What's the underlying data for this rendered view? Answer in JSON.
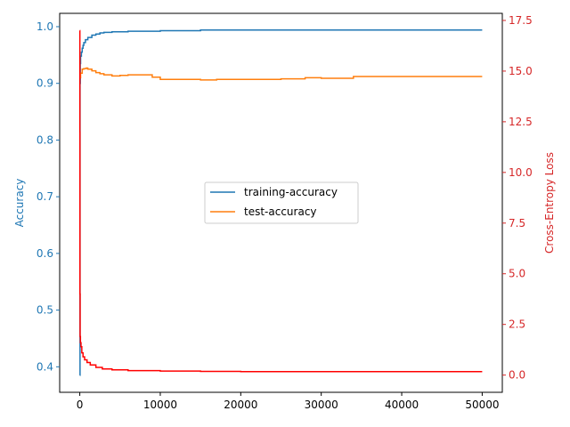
{
  "chart_data": {
    "type": "line",
    "title": "",
    "xlabel": "",
    "x_ticks": [
      "0",
      "10000",
      "20000",
      "30000",
      "40000",
      "50000"
    ],
    "x_range": [
      -2500,
      52500
    ],
    "left_axis": {
      "label": "Accuracy",
      "color": "#1f77b4",
      "range": [
        0.355,
        1.0235
      ],
      "ticks": [
        "0.4",
        "0.5",
        "0.6",
        "0.7",
        "0.8",
        "0.9",
        "1.0"
      ]
    },
    "right_axis": {
      "label": "Cross-Entropy Loss",
      "color": "#d62728",
      "range": [
        -0.85,
        17.85
      ],
      "ticks": [
        "0.0",
        "2.5",
        "5.0",
        "7.5",
        "10.0",
        "12.5",
        "15.0",
        "17.5"
      ]
    },
    "legend": {
      "position": "center",
      "entries": [
        "training-accuracy",
        "test-accuracy"
      ]
    },
    "series": [
      {
        "name": "training-accuracy",
        "axis": "left",
        "color": "#1f77b4",
        "x": [
          0,
          30,
          60,
          100,
          200,
          300,
          400,
          500,
          700,
          1000,
          1500,
          2000,
          2500,
          3000,
          4000,
          5000,
          6000,
          8000,
          10000,
          15000,
          20000,
          30000,
          40000,
          50000
        ],
        "y": [
          0.385,
          0.9,
          0.935,
          0.948,
          0.955,
          0.962,
          0.967,
          0.972,
          0.977,
          0.981,
          0.985,
          0.987,
          0.989,
          0.99,
          0.991,
          0.991,
          0.992,
          0.992,
          0.993,
          0.994,
          0.994,
          0.994,
          0.994,
          0.994
        ]
      },
      {
        "name": "test-accuracy",
        "axis": "left",
        "color": "#ff7f0e",
        "x": [
          0,
          100,
          300,
          500,
          800,
          1000,
          1500,
          2000,
          2500,
          3000,
          4000,
          5000,
          6000,
          7000,
          8000,
          9000,
          10000,
          12000,
          14000,
          15000,
          17000,
          20000,
          23000,
          25000,
          28000,
          30000,
          32000,
          34000,
          38000,
          42000,
          46000,
          50000
        ],
        "y": [
          0.91,
          0.918,
          0.925,
          0.926,
          0.927,
          0.925,
          0.922,
          0.919,
          0.917,
          0.915,
          0.913,
          0.914,
          0.915,
          0.915,
          0.915,
          0.911,
          0.907,
          0.907,
          0.907,
          0.906,
          0.907,
          0.907,
          0.907,
          0.908,
          0.91,
          0.909,
          0.909,
          0.912,
          0.912,
          0.912,
          0.912,
          0.912
        ]
      },
      {
        "name": "Cross-Entropy Loss",
        "axis": "right",
        "color": "#ff0000",
        "x": [
          0,
          10,
          20,
          40,
          80,
          150,
          250,
          400,
          600,
          900,
          1300,
          2000,
          2800,
          4000,
          6000,
          10000,
          15000,
          20000,
          30000,
          40000,
          50000
        ],
        "y": [
          17.0,
          12.0,
          4.0,
          1.9,
          1.6,
          1.4,
          1.1,
          0.9,
          0.75,
          0.62,
          0.5,
          0.38,
          0.3,
          0.26,
          0.22,
          0.2,
          0.18,
          0.17,
          0.17,
          0.17,
          0.17
        ]
      }
    ]
  }
}
